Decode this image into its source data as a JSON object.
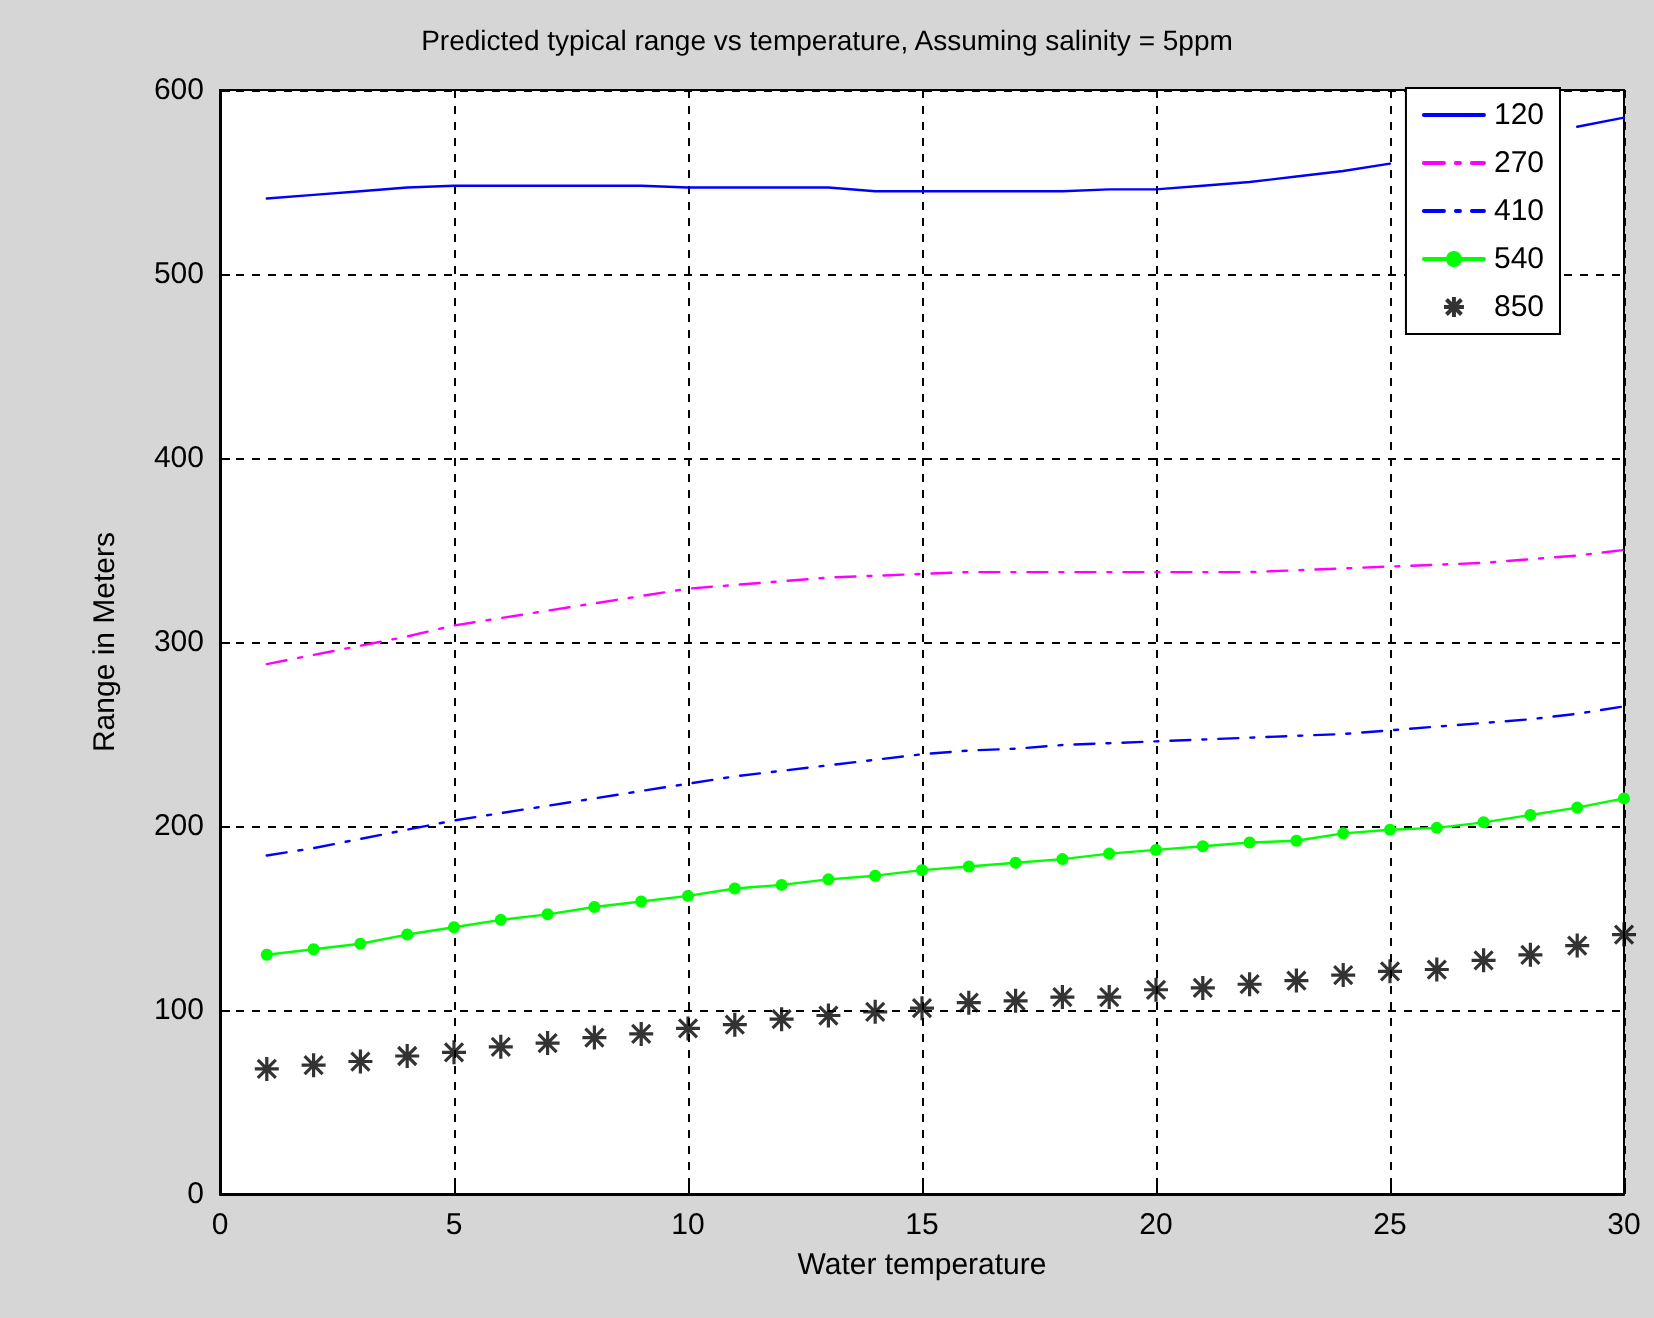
{
  "chart_data": {
    "type": "line",
    "title": "Predicted typical range vs temperature, Assuming salinity = 5ppm",
    "xlabel": "Water temperature",
    "ylabel": "Range in Meters",
    "x": [
      1,
      2,
      3,
      4,
      5,
      6,
      7,
      8,
      9,
      10,
      11,
      12,
      13,
      14,
      15,
      16,
      17,
      18,
      19,
      20,
      21,
      22,
      23,
      24,
      25,
      26,
      27,
      28,
      29,
      30
    ],
    "series": [
      {
        "name": "120",
        "color": "#0000ff",
        "line_style": "solid",
        "marker": "none",
        "values": [
          541,
          543,
          545,
          547,
          548,
          548,
          548,
          548,
          548,
          547,
          547,
          547,
          547,
          545,
          545,
          545,
          545,
          545,
          546,
          546,
          548,
          550,
          553,
          556,
          560,
          null,
          null,
          null,
          580,
          585
        ]
      },
      {
        "name": "270",
        "color": "#ff00ff",
        "line_style": "dashed",
        "marker": "none",
        "values": [
          288,
          293,
          298,
          303,
          309,
          313,
          317,
          321,
          325,
          329,
          331,
          333,
          335,
          336,
          337,
          338,
          338,
          338,
          338,
          338,
          338,
          338,
          339,
          340,
          341,
          342,
          343,
          345,
          347,
          350
        ]
      },
      {
        "name": "410",
        "color": "#0000ff",
        "line_style": "dashed",
        "marker": "none",
        "values": [
          184,
          188,
          193,
          198,
          203,
          207,
          211,
          215,
          219,
          223,
          227,
          230,
          233,
          236,
          239,
          241,
          242,
          244,
          245,
          246,
          247,
          248,
          249,
          250,
          252,
          254,
          256,
          258,
          261,
          265
        ]
      },
      {
        "name": "540",
        "color": "#00ff00",
        "line_style": "solid",
        "marker": "circle",
        "values": [
          130,
          133,
          136,
          141,
          145,
          149,
          152,
          156,
          159,
          162,
          166,
          168,
          171,
          173,
          176,
          178,
          180,
          182,
          185,
          187,
          189,
          191,
          192,
          196,
          198,
          199,
          202,
          206,
          210,
          215
        ]
      },
      {
        "name": "850",
        "type": "scatter",
        "color": "#000000",
        "marker": "cross",
        "values": [
          68,
          70,
          72,
          75,
          77,
          80,
          82,
          85,
          87,
          90,
          92,
          95,
          97,
          99,
          101,
          104,
          105,
          107,
          107,
          111,
          112,
          114,
          116,
          119,
          121,
          122,
          127,
          130,
          135,
          141
        ]
      }
    ],
    "xlim": [
      0,
      30
    ],
    "xticks": [
      0,
      5,
      10,
      15,
      20,
      25,
      30
    ],
    "ylim": [
      0,
      600
    ],
    "yticks": [
      0,
      100,
      200,
      300,
      400,
      500,
      600
    ],
    "grid": true,
    "legend": "top right"
  }
}
